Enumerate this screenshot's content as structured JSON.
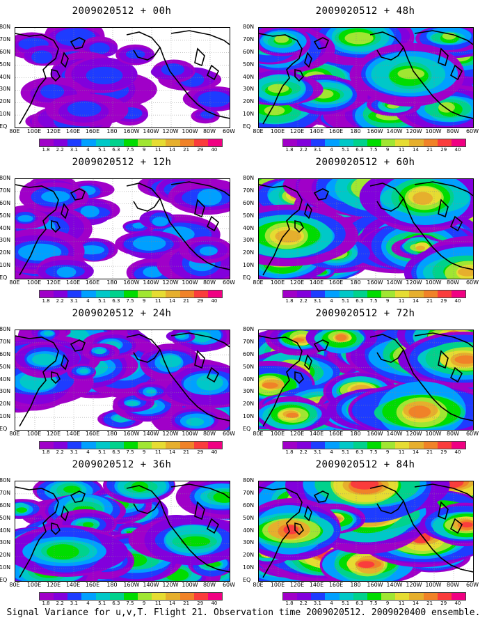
{
  "figure": {
    "caption": "Signal Variance for u,v,T. Flight 21. Observation time 2009020512. 2009020400 ensemble."
  },
  "panels": [
    {
      "title": "2009020512 + 00h",
      "intensity": 0.15
    },
    {
      "title": "2009020512 + 48h",
      "intensity": 0.65
    },
    {
      "title": "2009020512 + 12h",
      "intensity": 0.3
    },
    {
      "title": "2009020512 + 60h",
      "intensity": 0.75
    },
    {
      "title": "2009020512 + 24h",
      "intensity": 0.4
    },
    {
      "title": "2009020512 + 72h",
      "intensity": 0.85
    },
    {
      "title": "2009020512 + 36h",
      "intensity": 0.5
    },
    {
      "title": "2009020512 + 84h",
      "intensity": 0.95
    }
  ],
  "axes": {
    "y_ticks": [
      "80N",
      "70N",
      "60N",
      "50N",
      "40N",
      "30N",
      "20N",
      "10N",
      "EQ"
    ],
    "x_ticks": [
      "80E",
      "100E",
      "120E",
      "140E",
      "160E",
      "180",
      "160W",
      "140W",
      "120W",
      "100W",
      "80W",
      "60W"
    ]
  },
  "colorbar": {
    "labels": [
      "1.8",
      "2.2",
      "3.1",
      "4",
      "5.1",
      "6.3",
      "7.5",
      "9",
      "11",
      "14",
      "21",
      "29",
      "40"
    ],
    "colors": [
      "#a000c8",
      "#8200dc",
      "#1e3cff",
      "#00a0ff",
      "#00c8c8",
      "#00d28c",
      "#00dc00",
      "#a0e632",
      "#e6dc32",
      "#e6af2d",
      "#f08228",
      "#fa3c3c",
      "#f00082"
    ]
  }
}
